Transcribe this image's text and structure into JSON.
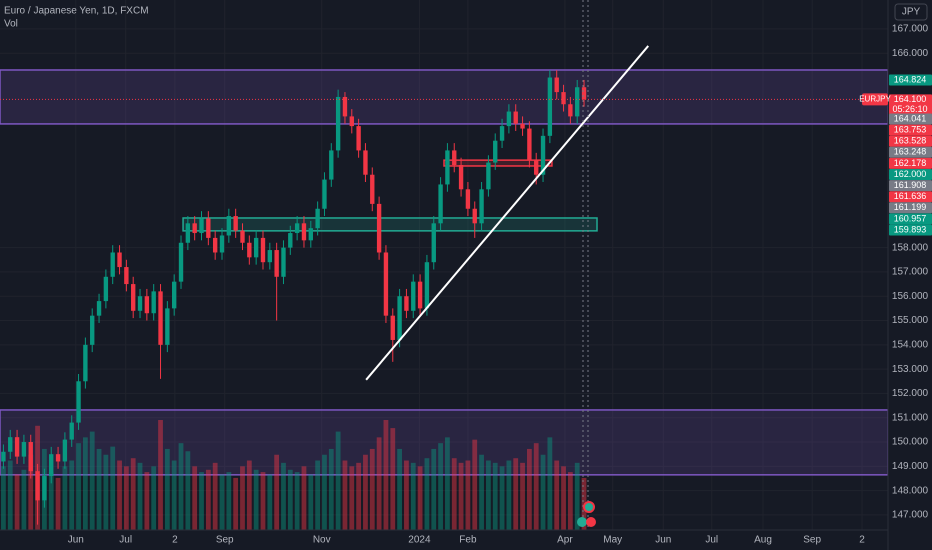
{
  "chart_data": {
    "type": "candlestick",
    "title": "Euro / Japanese Yen, 1D, FXCM",
    "subtitle": "Vol",
    "currency_button": "JPY",
    "up_color": "#089981",
    "down_color": "#f23645",
    "xlim": [
      0,
      130
    ],
    "ylim": [
      146.38,
      168.19
    ],
    "xticks": [
      {
        "value": 11.1,
        "label": "Jun"
      },
      {
        "value": 18.4,
        "label": "Jul"
      },
      {
        "value": 25.6,
        "label": "2"
      },
      {
        "value": 32.9,
        "label": "Sep"
      },
      {
        "value": 47.1,
        "label": "Nov"
      },
      {
        "value": 61.4,
        "label": "2024"
      },
      {
        "value": 68.5,
        "label": "Feb"
      },
      {
        "value": 82.7,
        "label": "Apr"
      },
      {
        "value": 89.7,
        "label": "May"
      },
      {
        "value": 97.1,
        "label": "Jun"
      },
      {
        "value": 104.2,
        "label": "Jul"
      },
      {
        "value": 111.7,
        "label": "Aug"
      },
      {
        "value": 118.9,
        "label": "Sep"
      },
      {
        "value": 126.2,
        "label": "2"
      }
    ],
    "yticks": [
      {
        "value": 167,
        "label": "167.000"
      },
      {
        "value": 166,
        "label": "166.000"
      },
      {
        "value": 158,
        "label": "158.000"
      },
      {
        "value": 157,
        "label": "157.000"
      },
      {
        "value": 156,
        "label": "156.000"
      },
      {
        "value": 155,
        "label": "155.000"
      },
      {
        "value": 154,
        "label": "154.000"
      },
      {
        "value": 153,
        "label": "153.000"
      },
      {
        "value": 152,
        "label": "152.000"
      },
      {
        "value": 151,
        "label": "151.000"
      },
      {
        "value": 150,
        "label": "150.000"
      },
      {
        "value": 149,
        "label": "149.000"
      },
      {
        "value": 148,
        "label": "148.000"
      },
      {
        "value": 147,
        "label": "147.000"
      }
    ],
    "grid": true,
    "open": [
      149.2,
      149.6,
      150.2,
      149.4,
      150.0,
      148.8,
      147.6,
      148.6,
      149.5,
      149.2,
      150.1,
      150.8,
      152.5,
      154.0,
      155.2,
      155.8,
      156.8,
      157.8,
      157.2,
      156.5,
      155.4,
      156.0,
      155.3,
      156.2,
      154.0,
      155.5,
      156.6,
      158.2,
      159.0,
      158.6,
      159.2,
      158.4,
      157.8,
      158.5,
      159.3,
      158.7,
      158.2,
      157.6,
      158.4,
      157.4,
      157.9,
      156.8,
      158.0,
      158.6,
      159.0,
      158.3,
      158.8,
      159.6,
      160.8,
      162.0,
      164.2,
      163.4,
      163.0,
      162.0,
      161.0,
      159.8,
      157.8,
      155.2,
      154.2,
      156.0,
      155.4,
      156.6,
      155.5,
      157.4,
      159.0,
      160.6,
      162.0,
      161.4,
      160.4,
      159.6,
      159.0,
      160.4,
      161.5,
      162.4,
      163.0,
      163.6,
      163.1,
      162.9,
      161.6,
      161.0,
      162.6,
      165.0,
      164.4,
      163.9,
      163.4,
      164.6
    ],
    "high": [
      149.9,
      150.5,
      150.5,
      150.3,
      150.3,
      149.1,
      148.9,
      149.8,
      149.8,
      150.4,
      151.1,
      152.8,
      154.3,
      155.5,
      156.1,
      157.1,
      158.1,
      158.1,
      157.5,
      156.8,
      156.3,
      156.3,
      156.5,
      156.5,
      155.8,
      156.9,
      158.5,
      159.3,
      159.3,
      159.5,
      159.5,
      158.7,
      158.8,
      159.6,
      159.6,
      159.0,
      158.5,
      158.7,
      158.7,
      158.2,
      158.2,
      158.3,
      158.9,
      159.3,
      159.3,
      159.1,
      159.9,
      161.1,
      162.3,
      164.5,
      164.4,
      163.7,
      163.3,
      162.3,
      161.3,
      160.1,
      158.1,
      155.5,
      156.3,
      156.3,
      156.9,
      156.9,
      157.7,
      159.3,
      160.9,
      162.3,
      162.3,
      161.7,
      160.7,
      159.9,
      160.7,
      161.8,
      162.7,
      163.3,
      163.9,
      163.9,
      163.4,
      163.2,
      161.9,
      162.9,
      165.3,
      165.3,
      164.7,
      164.2,
      164.9,
      164.9
    ],
    "low": [
      148.9,
      149.3,
      149.1,
      149.1,
      148.5,
      146.6,
      147.3,
      148.3,
      148.9,
      148.9,
      149.8,
      150.5,
      152.2,
      153.7,
      154.9,
      155.5,
      156.5,
      156.9,
      156.2,
      155.1,
      155.1,
      155.0,
      155.0,
      152.6,
      153.7,
      155.2,
      156.3,
      157.9,
      158.3,
      158.3,
      158.1,
      157.5,
      157.5,
      158.2,
      158.4,
      157.9,
      157.3,
      157.3,
      157.1,
      157.1,
      155.0,
      156.5,
      157.7,
      158.3,
      158.0,
      158.0,
      158.5,
      159.3,
      160.5,
      161.7,
      163.1,
      162.7,
      161.7,
      160.7,
      159.5,
      157.5,
      154.9,
      153.3,
      153.9,
      155.1,
      155.1,
      155.2,
      155.2,
      157.1,
      158.7,
      160.3,
      161.1,
      160.1,
      159.3,
      158.4,
      158.7,
      160.1,
      161.2,
      162.1,
      162.7,
      162.8,
      162.6,
      161.3,
      160.6,
      160.7,
      162.3,
      164.1,
      163.6,
      163.1,
      163.1,
      163.8
    ],
    "close": [
      149.6,
      150.2,
      149.4,
      150.0,
      148.8,
      147.6,
      148.6,
      149.5,
      149.2,
      150.1,
      150.8,
      152.5,
      154.0,
      155.2,
      155.8,
      156.8,
      157.8,
      157.2,
      156.5,
      155.4,
      156.0,
      155.3,
      156.2,
      154.0,
      155.5,
      156.6,
      158.2,
      159.0,
      158.6,
      159.2,
      158.4,
      157.8,
      158.5,
      159.3,
      158.7,
      158.2,
      157.6,
      158.4,
      157.4,
      157.9,
      156.8,
      158.0,
      158.6,
      159.0,
      158.3,
      158.8,
      159.6,
      160.8,
      162.0,
      164.2,
      163.4,
      163.0,
      162.0,
      161.0,
      159.8,
      157.8,
      155.2,
      154.2,
      156.0,
      155.4,
      156.6,
      155.5,
      157.4,
      159.0,
      160.6,
      162.0,
      161.4,
      160.4,
      159.6,
      159.0,
      160.4,
      161.5,
      162.4,
      163.0,
      163.6,
      163.1,
      162.9,
      161.6,
      161.0,
      162.6,
      165.0,
      164.4,
      163.9,
      163.4,
      164.6,
      164.1
    ],
    "volume": [
      55,
      60,
      48,
      52,
      65,
      90,
      70,
      50,
      45,
      55,
      60,
      75,
      80,
      85,
      70,
      65,
      72,
      60,
      55,
      62,
      58,
      50,
      55,
      95,
      70,
      60,
      75,
      68,
      55,
      50,
      52,
      58,
      48,
      50,
      45,
      55,
      60,
      52,
      50,
      48,
      65,
      58,
      52,
      50,
      55,
      48,
      60,
      65,
      70,
      85,
      60,
      55,
      58,
      65,
      70,
      80,
      95,
      88,
      70,
      60,
      58,
      55,
      62,
      70,
      75,
      80,
      62,
      58,
      60,
      78,
      65,
      60,
      58,
      55,
      60,
      62,
      58,
      70,
      75,
      65,
      80,
      60,
      55,
      50,
      58,
      45
    ],
    "zones": [
      {
        "y": [
          163.09,
          165.31
        ],
        "color": "#7e57c2"
      },
      {
        "y": [
          148.65,
          151.32
        ],
        "color": "#7e57c2"
      },
      {
        "x": [
          26.8,
          87.4
        ],
        "y": [
          158.69,
          159.22
        ],
        "color": "#22ab94"
      },
      {
        "x": [
          65.0,
          80.8
        ],
        "y": [
          161.36,
          161.6
        ],
        "color": "#f23645"
      }
    ],
    "trend_line": {
      "x": [
        53.6,
        94.9
      ],
      "y": [
        152.56,
        166.3
      ],
      "color": "#ffffff"
    },
    "last_price": {
      "symbol": "EURJPY",
      "price": "164.100",
      "countdown": "05:26:10",
      "value": 164.1,
      "color": "#f23645"
    },
    "price_tags": [
      {
        "label": "164.824",
        "color": "#089981"
      },
      {
        "label": "164.041",
        "color": "#787b86"
      },
      {
        "label": "163.753",
        "color": "#f23645"
      },
      {
        "label": "163.528",
        "color": "#f23645"
      },
      {
        "label": "163.248",
        "color": "#787b86"
      },
      {
        "label": "162.178",
        "color": "#f23645"
      },
      {
        "label": "162.000",
        "color": "#089981"
      },
      {
        "label": "161.908",
        "color": "#787b86"
      },
      {
        "label": "161.636",
        "color": "#f23645"
      },
      {
        "label": "161.199",
        "color": "#787b86"
      },
      {
        "label": "160.957",
        "color": "#089981"
      },
      {
        "label": "159.893",
        "color": "#089981"
      }
    ]
  }
}
